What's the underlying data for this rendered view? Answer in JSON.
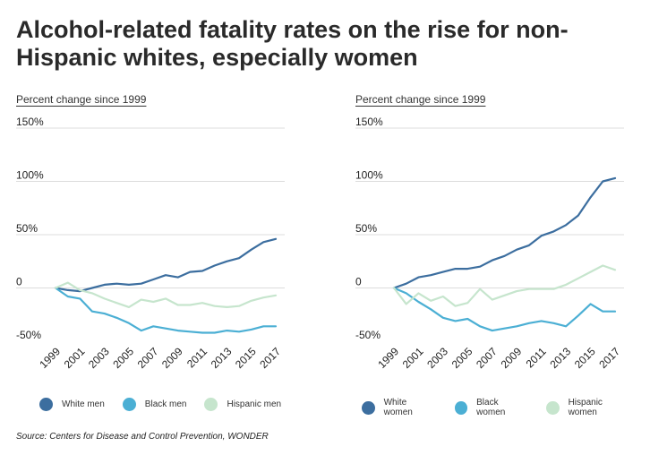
{
  "title": "Alcohol-related fatality rates on the rise for non-Hispanic whites, especially women",
  "source": "Source: Centers for Disease and Control Prevention, WONDER",
  "colors": {
    "white": "#3c6e9f",
    "black": "#4bafd4",
    "hispanic": "#c6e5cd",
    "grid": "#dcdcdc",
    "text": "#222222"
  },
  "chart_data": [
    {
      "type": "line",
      "ylabel": "Percent change since 1999",
      "ylim": [
        -50,
        150
      ],
      "yticks": [
        -50,
        0,
        50,
        100,
        150
      ],
      "ytick_labels": [
        "-50%",
        "0",
        "50%",
        "100%",
        "150%"
      ],
      "x": [
        1999,
        2000,
        2001,
        2002,
        2003,
        2004,
        2005,
        2006,
        2007,
        2008,
        2009,
        2010,
        2011,
        2012,
        2013,
        2014,
        2015,
        2016,
        2017
      ],
      "xtick_labels": [
        "1999",
        "2001",
        "2003",
        "2005",
        "2007",
        "2009",
        "2011",
        "2013",
        "2015",
        "2017"
      ],
      "series": [
        {
          "name": "White men",
          "color_key": "white",
          "values": [
            0,
            -2,
            -3,
            0,
            3,
            4,
            3,
            4,
            8,
            12,
            10,
            15,
            16,
            21,
            25,
            28,
            36,
            43,
            46
          ]
        },
        {
          "name": "Black men",
          "color_key": "black",
          "values": [
            0,
            -8,
            -10,
            -22,
            -24,
            -28,
            -33,
            -40,
            -36,
            -38,
            -40,
            -41,
            -42,
            -42,
            -40,
            -41,
            -39,
            -36,
            -36
          ]
        },
        {
          "name": "Hispanic men",
          "color_key": "hispanic",
          "values": [
            0,
            5,
            -2,
            -5,
            -10,
            -14,
            -18,
            -11,
            -13,
            -10,
            -16,
            -16,
            -14,
            -17,
            -18,
            -17,
            -12,
            -9,
            -7
          ]
        }
      ],
      "legend": "bottom"
    },
    {
      "type": "line",
      "ylabel": "Percent change since 1999",
      "ylim": [
        -50,
        150
      ],
      "yticks": [
        -50,
        0,
        50,
        100,
        150
      ],
      "ytick_labels": [
        "-50%",
        "0",
        "50%",
        "100%",
        "150%"
      ],
      "x": [
        1999,
        2000,
        2001,
        2002,
        2003,
        2004,
        2005,
        2006,
        2007,
        2008,
        2009,
        2010,
        2011,
        2012,
        2013,
        2014,
        2015,
        2016,
        2017
      ],
      "xtick_labels": [
        "1999",
        "2001",
        "2003",
        "2005",
        "2007",
        "2009",
        "2011",
        "2013",
        "2015",
        "2017"
      ],
      "series": [
        {
          "name": "White women",
          "color_key": "white",
          "values": [
            0,
            4,
            10,
            12,
            15,
            18,
            18,
            20,
            26,
            30,
            36,
            40,
            49,
            53,
            59,
            68,
            85,
            100,
            103
          ]
        },
        {
          "name": "Black women",
          "color_key": "black",
          "values": [
            0,
            -5,
            -13,
            -20,
            -28,
            -31,
            -29,
            -36,
            -40,
            -38,
            -36,
            -33,
            -31,
            -33,
            -36,
            -26,
            -15,
            -22,
            -22
          ]
        },
        {
          "name": "Hispanic women",
          "color_key": "hispanic",
          "values": [
            0,
            -15,
            -5,
            -12,
            -8,
            -17,
            -14,
            -1,
            -11,
            -7,
            -3,
            -1,
            -1,
            -1,
            3,
            9,
            15,
            21,
            17
          ]
        }
      ],
      "legend": "bottom"
    }
  ]
}
